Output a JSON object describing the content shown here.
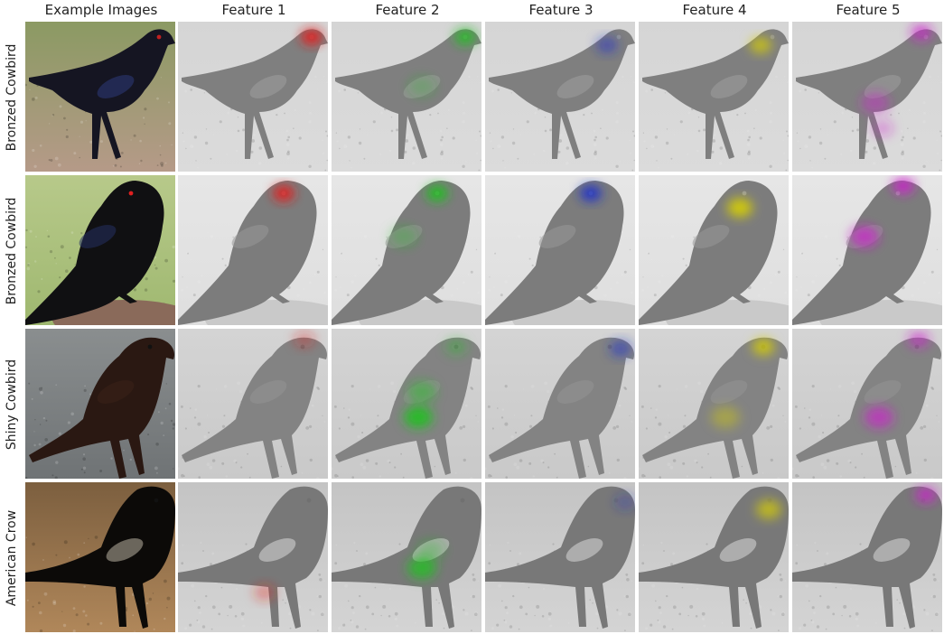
{
  "header": {
    "columns": [
      "Example Images",
      "Feature 1",
      "Feature 2",
      "Feature 3",
      "Feature 4",
      "Feature 5"
    ]
  },
  "rows": [
    {
      "label": "Bronzed Cowbird",
      "scene": "grass",
      "photo": {
        "bg_top": "#8b9a63",
        "bg_bottom": "#b59a88",
        "bird": "#151522",
        "sheen": "#2d3a7a",
        "eye": "#c02020"
      }
    },
    {
      "label": "Bronzed Cowbird",
      "scene": "rock",
      "photo": {
        "bg_top": "#b7c98a",
        "bg_bottom": "#9fb870",
        "bird": "#101012",
        "sheen": "#243060",
        "eye": "#e02020"
      }
    },
    {
      "label": "Shiny Cowbird",
      "scene": "gravel",
      "photo": {
        "bg_top": "#8a8e8f",
        "bg_bottom": "#6f7375",
        "bird": "#2a1812",
        "sheen": "#3a2218",
        "eye": "#111111"
      }
    },
    {
      "label": "American Crow",
      "scene": "sand",
      "photo": {
        "bg_top": "#7c5f3f",
        "bg_bottom": "#b0875a",
        "bird": "#0c0a08",
        "sheen": "#b9b2a2",
        "eye": "#111111"
      }
    }
  ],
  "features": [
    {
      "name": "Feature 1",
      "color": "#e3201f"
    },
    {
      "name": "Feature 2",
      "color": "#20c020"
    },
    {
      "name": "Feature 3",
      "color": "#2030c8"
    },
    {
      "name": "Feature 4",
      "color": "#d8d000"
    },
    {
      "name": "Feature 5",
      "color": "#d020d0"
    }
  ],
  "heatmaps": [
    [
      [
        {
          "part": "head",
          "a": 0.95
        }
      ],
      [
        {
          "part": "head",
          "a": 0.85
        },
        {
          "part": "breast",
          "a": 0.25
        }
      ],
      [
        {
          "part": "nape",
          "a": 0.55
        }
      ],
      [
        {
          "part": "nape",
          "a": 0.75
        }
      ],
      [
        {
          "part": "crown",
          "a": 0.7
        },
        {
          "part": "belly",
          "a": 0.45
        },
        {
          "part": "legs",
          "a": 0.35
        }
      ]
    ],
    [
      [
        {
          "part": "head",
          "a": 0.95
        }
      ],
      [
        {
          "part": "head",
          "a": 0.95
        },
        {
          "part": "breast",
          "a": 0.3
        }
      ],
      [
        {
          "part": "head",
          "a": 0.95
        }
      ],
      [
        {
          "part": "collar",
          "a": 0.9
        }
      ],
      [
        {
          "part": "crown",
          "a": 0.85
        },
        {
          "part": "breast",
          "a": 0.7
        }
      ]
    ],
    [
      [
        {
          "part": "crown",
          "a": 0.35
        }
      ],
      [
        {
          "part": "head",
          "a": 0.4
        },
        {
          "part": "belly",
          "a": 0.9
        },
        {
          "part": "breast",
          "a": 0.5
        }
      ],
      [
        {
          "part": "beak",
          "a": 0.6
        }
      ],
      [
        {
          "part": "head",
          "a": 0.85
        },
        {
          "part": "belly",
          "a": 0.4
        }
      ],
      [
        {
          "part": "crown",
          "a": 0.6
        },
        {
          "part": "belly",
          "a": 0.65
        }
      ]
    ],
    [
      [
        {
          "part": "legs",
          "a": 0.4
        }
      ],
      [
        {
          "part": "belly",
          "a": 0.8
        },
        {
          "part": "breast",
          "a": 0.3
        }
      ],
      [
        {
          "part": "beak",
          "a": 0.3
        }
      ],
      [
        {
          "part": "collar",
          "a": 0.7
        }
      ],
      [
        {
          "part": "crown",
          "a": 0.75
        }
      ]
    ]
  ]
}
